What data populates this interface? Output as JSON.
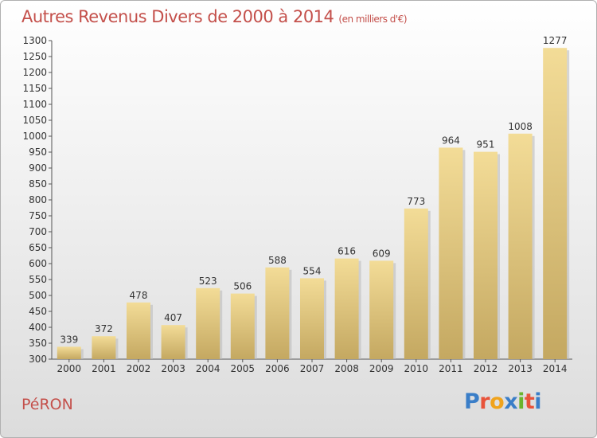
{
  "chart_data": {
    "type": "bar",
    "title": "Autres Revenus Divers de 2000 à 2014",
    "subtitle": "(en milliers d'€)",
    "categories": [
      "2000",
      "2001",
      "2002",
      "2003",
      "2004",
      "2005",
      "2006",
      "2007",
      "2008",
      "2009",
      "2010",
      "2011",
      "2012",
      "2013",
      "2014"
    ],
    "values": [
      339,
      372,
      478,
      407,
      523,
      506,
      588,
      554,
      616,
      609,
      773,
      964,
      951,
      1008,
      1277
    ],
    "data_labels": [
      "339",
      "372",
      "478",
      "407",
      "523",
      "506",
      "588",
      "554",
      "616",
      "609",
      "773",
      "964",
      "951",
      "1008",
      "1277"
    ],
    "xlabel": "",
    "ylabel": "",
    "ylim": [
      300,
      1300
    ],
    "yticks": [
      300,
      350,
      400,
      450,
      500,
      550,
      600,
      650,
      700,
      750,
      800,
      850,
      900,
      950,
      1000,
      1050,
      1100,
      1150,
      1200,
      1250,
      1300
    ],
    "grid": false,
    "bar_color_top": "#f3dc97",
    "bar_color_bottom": "#c4a861"
  },
  "footer": {
    "commune": "PéRON",
    "logo": "Proxiti",
    "logo_colors": [
      "#3a7ec8",
      "#e8533a",
      "#f0a31c",
      "#3a7ec8",
      "#6ab42d",
      "#e8533a",
      "#3a7ec8"
    ]
  },
  "colors": {
    "title": "#c4504b",
    "axis": "#555555",
    "text": "#333333"
  }
}
